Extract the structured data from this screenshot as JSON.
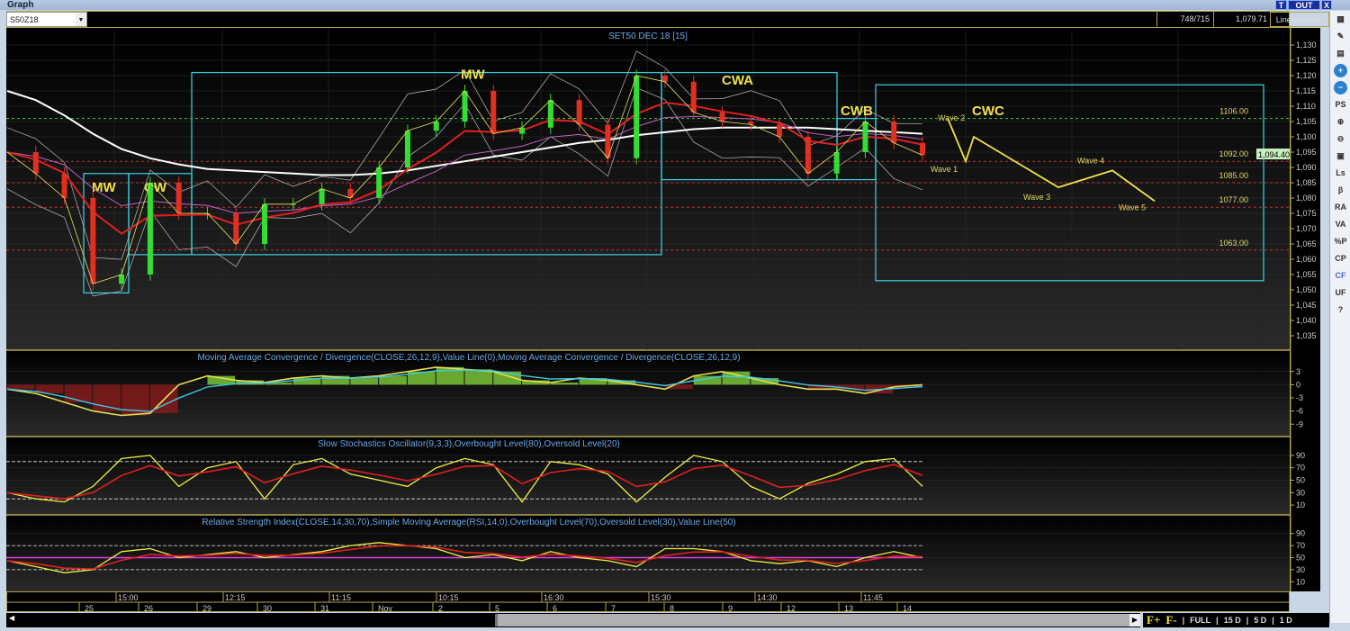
{
  "window": {
    "title": "Graph",
    "buttons": [
      "T",
      "OUT",
      "X"
    ]
  },
  "toolbar": {
    "symbol": "S50Z18",
    "counter": "748/715",
    "cursor_value": "1,079.71",
    "scale_mode": "Linear(Auto)"
  },
  "right_tools": [
    {
      "icon": "table-icon",
      "label": "▦"
    },
    {
      "icon": "chart-edit-icon",
      "label": "✎"
    },
    {
      "icon": "folder-icon",
      "label": "▤"
    },
    {
      "icon": "zoom-in-icon",
      "label": "+"
    },
    {
      "icon": "zoom-out-icon",
      "label": "−"
    },
    {
      "icon": "ps-dropdown-icon",
      "label": "PS"
    },
    {
      "icon": "magnify-plus-icon",
      "label": "⊕"
    },
    {
      "icon": "magnify-minus-icon",
      "label": "⊖"
    },
    {
      "icon": "window-icon",
      "label": "▣"
    },
    {
      "icon": "ls-icon",
      "label": "Ls"
    },
    {
      "icon": "beta-icon",
      "label": "β"
    },
    {
      "icon": "ra-icon",
      "label": "RA"
    },
    {
      "icon": "va-icon",
      "label": "VA"
    },
    {
      "icon": "percent-p-icon",
      "label": "%P"
    },
    {
      "icon": "cp-icon",
      "label": "CP"
    },
    {
      "icon": "cf-icon",
      "label": "CF"
    },
    {
      "icon": "uf-icon",
      "label": "UF"
    },
    {
      "icon": "help-icon",
      "label": "?"
    }
  ],
  "bottom": {
    "f_plus": "F+",
    "f_minus": "F-",
    "periods": [
      "FULL",
      "15 D",
      "5 D",
      "1 D"
    ]
  },
  "colors": {
    "up": "#33dd33",
    "down": "#e03020",
    "ma_fast": "#e02020",
    "ma_long": "#ffffff",
    "annot": "#f2e24a",
    "box": "#38c8d8",
    "level_green": "#3ecf3e",
    "level_red": "#c43030",
    "axis": "#b5a64a"
  },
  "chart_data": [
    {
      "type": "candlestick",
      "title": "SET50 DEC 18   [15]",
      "ylim": [
        1030,
        1135
      ],
      "yticks": [
        "1,130",
        "1,125",
        "1,120",
        "1,115",
        "1,110",
        "1,105",
        "1,100",
        "1,095",
        "1,090",
        "1,085",
        "1,080",
        "1,075",
        "1,070",
        "1,065",
        "1,060",
        "1,055",
        "1,050",
        "1,045",
        "1,040",
        "1,035"
      ],
      "ytick_values": [
        1130,
        1125,
        1120,
        1115,
        1110,
        1105,
        1100,
        1095,
        1090,
        1085,
        1080,
        1075,
        1070,
        1065,
        1060,
        1055,
        1050,
        1045,
        1040,
        1035
      ],
      "last_price": "1,094.40",
      "close": [
        1095,
        1088,
        1080,
        1052,
        1055,
        1085,
        1075,
        1075,
        1065,
        1078,
        1078,
        1083,
        1080,
        1090,
        1102,
        1105,
        1115,
        1101,
        1103,
        1112,
        1104,
        1093,
        1120,
        1118,
        1108,
        1105,
        1104,
        1100,
        1088,
        1095,
        1105,
        1098,
        1094
      ],
      "ma_long": [
        1115,
        1112,
        1107,
        1101,
        1096,
        1093,
        1091,
        1089.5,
        1089,
        1088.5,
        1088,
        1087.5,
        1087.5,
        1088,
        1089,
        1090.5,
        1092,
        1093.5,
        1095,
        1096.5,
        1098,
        1099,
        1100.5,
        1101.5,
        1102.5,
        1103,
        1103,
        1103,
        1103,
        1102.5,
        1102,
        1101.5,
        1101
      ],
      "levels": [
        {
          "label": "1106.00",
          "value": 1106,
          "color": "green"
        },
        {
          "label": "1092.00",
          "value": 1092,
          "color": "red"
        },
        {
          "label": "1085.00",
          "value": 1085,
          "color": "red"
        },
        {
          "label": "1077.00",
          "value": 1077,
          "color": "red"
        },
        {
          "label": "1063.00",
          "value": 1063,
          "color": "red"
        }
      ],
      "annotations": [
        "MW",
        "CW",
        "MW",
        "CWA",
        "CWB",
        "CWC"
      ],
      "wave_projection": [
        {
          "label": "",
          "value": 1106
        },
        {
          "label": "Wave 1",
          "value": 1092
        },
        {
          "label": "Wave 2",
          "value": 1100
        },
        {
          "label": "Wave 3",
          "value": 1083.5
        },
        {
          "label": "Wave 4",
          "value": 1089
        },
        {
          "label": "Wave 5",
          "value": 1079
        }
      ],
      "time_labels": [
        "15:00",
        "12:15",
        "11:15",
        "10:15",
        "16:30",
        "15:30",
        "14:30",
        "11:45"
      ],
      "date_labels": [
        "25",
        "26",
        "29",
        "30",
        "31",
        "Nov",
        "2",
        "5",
        "6",
        "7",
        "8",
        "9",
        "12",
        "13",
        "14"
      ]
    },
    {
      "type": "bar+line",
      "title": "Moving Average Convergence / Divergence(CLOSE,26,12,9),Value Line(0),Moving Average Convergence / Divergence(CLOSE,26,12,9)",
      "ylim": [
        -11,
        5
      ],
      "yticks": [
        "3",
        "0",
        "-3",
        "-6",
        "-9"
      ],
      "ytick_values": [
        3,
        0,
        -3,
        -6,
        -9
      ],
      "values": [
        -1,
        -2,
        -4,
        -6,
        -7,
        -6.5,
        0,
        2,
        1,
        0.5,
        1.5,
        2,
        1.5,
        2,
        3,
        4,
        3.5,
        3,
        1,
        0.5,
        1.5,
        1,
        0,
        -1,
        2,
        3,
        1.5,
        0,
        -1,
        -1,
        -2,
        -0.5,
        0
      ]
    },
    {
      "type": "line",
      "title": "Slow Stochastics Oscillator(9,3,3),Overbought Level(80),Oversold Level(20)",
      "ylim": [
        0,
        100
      ],
      "yticks": [
        "90",
        "70",
        "50",
        "30",
        "10"
      ],
      "ytick_values": [
        90,
        70,
        50,
        30,
        10
      ],
      "levels": [
        80,
        20
      ],
      "values": [
        30,
        20,
        15,
        40,
        85,
        90,
        40,
        70,
        80,
        20,
        75,
        85,
        60,
        50,
        40,
        70,
        85,
        75,
        15,
        80,
        75,
        60,
        15,
        55,
        90,
        80,
        40,
        20,
        45,
        60,
        80,
        85,
        40
      ]
    },
    {
      "type": "line",
      "title": "Relative Strength Index(CLOSE,14,30,70),Simple Moving Average(RSI,14,0),Overbought Level(70),Oversold Level(30),Value Line(50)",
      "ylim": [
        0,
        100
      ],
      "yticks": [
        "90",
        "70",
        "50",
        "30",
        "10"
      ],
      "ytick_values": [
        90,
        70,
        50,
        30,
        10
      ],
      "levels": [
        70,
        30,
        50
      ],
      "values": [
        45,
        35,
        25,
        30,
        60,
        65,
        50,
        55,
        60,
        50,
        55,
        60,
        70,
        75,
        70,
        65,
        50,
        55,
        45,
        60,
        50,
        45,
        35,
        65,
        65,
        60,
        45,
        40,
        45,
        35,
        50,
        60,
        50
      ]
    }
  ]
}
